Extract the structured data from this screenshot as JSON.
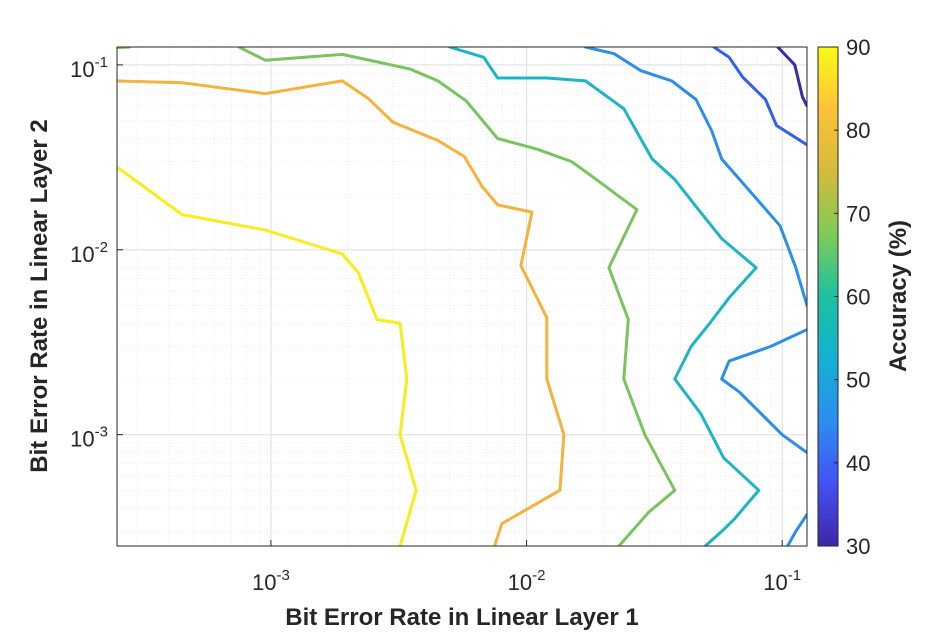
{
  "chart_data": {
    "type": "contour",
    "xlabel": "Bit Error Rate in Linear Layer 1",
    "ylabel": "Bit Error Rate in Linear Layer 2",
    "xscale": "log",
    "yscale": "log",
    "xlim": [
      0.00025,
      0.125
    ],
    "ylim": [
      0.00025,
      0.125
    ],
    "grid": true,
    "minor_grid": true,
    "x_ticks": [
      {
        "value": 0.001,
        "base": "10",
        "exp": "-3"
      },
      {
        "value": 0.01,
        "base": "10",
        "exp": "-2"
      },
      {
        "value": 0.1,
        "base": "10",
        "exp": "-1"
      }
    ],
    "y_ticks": [
      {
        "value": 0.1,
        "base": "10",
        "exp": "-1"
      },
      {
        "value": 0.01,
        "base": "10",
        "exp": "-2"
      },
      {
        "value": 0.001,
        "base": "10",
        "exp": "-3"
      }
    ],
    "colorbar": {
      "label": "Accuracy (%)",
      "min": 30,
      "max": 90,
      "ticks": [
        "90",
        "80",
        "70",
        "60",
        "50",
        "40",
        "30"
      ],
      "colormap": [
        "#3e26a8",
        "#4451f4",
        "#2d8df0",
        "#14b1d3",
        "#1cc1a0",
        "#80cb58",
        "#d5bb3a",
        "#fcc238",
        "#f9fb15"
      ]
    },
    "levels": [
      {
        "value": 90,
        "color": "#f4ee1c",
        "segments": [
          [
            [
              0.00025,
              0.028
            ],
            [
              0.00045,
              0.0155
            ],
            [
              0.00095,
              0.0128
            ],
            [
              0.0019,
              0.0095
            ],
            [
              0.0022,
              0.0075
            ],
            [
              0.0026,
              0.0042
            ],
            [
              0.0032,
              0.004
            ],
            [
              0.0034,
              0.002
            ],
            [
              0.0032,
              0.001
            ],
            [
              0.0037,
              0.0005
            ],
            [
              0.0032,
              0.00025
            ]
          ]
        ]
      },
      {
        "value": 80,
        "color": "#f5b23f",
        "segments": [
          [
            [
              0.00025,
              0.082
            ],
            [
              0.00045,
              0.08
            ],
            [
              0.00095,
              0.07
            ],
            [
              0.0019,
              0.082
            ],
            [
              0.0024,
              0.066
            ],
            [
              0.003,
              0.049
            ],
            [
              0.0045,
              0.039
            ],
            [
              0.0057,
              0.032
            ],
            [
              0.0067,
              0.022
            ],
            [
              0.0077,
              0.0175
            ],
            [
              0.0105,
              0.016
            ],
            [
              0.0095,
              0.0082
            ],
            [
              0.012,
              0.0043
            ],
            [
              0.012,
              0.002
            ],
            [
              0.014,
              0.001
            ],
            [
              0.0135,
              0.0005
            ],
            [
              0.008,
              0.00033
            ],
            [
              0.0075,
              0.00025
            ]
          ]
        ]
      },
      {
        "value": 70,
        "color": "#7ac460",
        "segments": [
          [
            [
              0.00025,
              0.124
            ],
            [
              0.00028,
              0.125
            ]
          ],
          [
            [
              0.00075,
              0.125
            ],
            [
              0.00095,
              0.106
            ],
            [
              0.0019,
              0.114
            ],
            [
              0.0035,
              0.095
            ],
            [
              0.0045,
              0.082
            ],
            [
              0.0058,
              0.064
            ],
            [
              0.0077,
              0.04
            ],
            [
              0.011,
              0.035
            ],
            [
              0.015,
              0.03
            ],
            [
              0.018,
              0.025
            ],
            [
              0.027,
              0.0165
            ],
            [
              0.021,
              0.008
            ],
            [
              0.025,
              0.0042
            ],
            [
              0.024,
              0.002
            ],
            [
              0.029,
              0.001
            ],
            [
              0.038,
              0.0005
            ],
            [
              0.03,
              0.00038
            ],
            [
              0.023,
              0.00025
            ]
          ]
        ]
      },
      {
        "value": 60,
        "color": "#1db5c4",
        "segments": [
          [
            [
              0.005,
              0.125
            ],
            [
              0.0068,
              0.11
            ],
            [
              0.0077,
              0.085
            ],
            [
              0.012,
              0.085
            ],
            [
              0.017,
              0.082
            ],
            [
              0.024,
              0.058
            ],
            [
              0.031,
              0.031
            ],
            [
              0.038,
              0.024
            ],
            [
              0.047,
              0.0165
            ],
            [
              0.058,
              0.0115
            ],
            [
              0.079,
              0.008
            ],
            [
              0.062,
              0.0055
            ],
            [
              0.052,
              0.004
            ],
            [
              0.044,
              0.003
            ],
            [
              0.038,
              0.002
            ],
            [
              0.048,
              0.0013
            ],
            [
              0.059,
              0.00075
            ],
            [
              0.081,
              0.0005
            ],
            [
              0.065,
              0.00035
            ],
            [
              0.058,
              0.0003
            ],
            [
              0.05,
              0.00025
            ]
          ]
        ]
      },
      {
        "value": 50,
        "color": "#2e8ee6",
        "segments": [
          [
            [
              0.017,
              0.125
            ],
            [
              0.022,
              0.115
            ],
            [
              0.028,
              0.093
            ],
            [
              0.037,
              0.082
            ],
            [
              0.046,
              0.065
            ],
            [
              0.053,
              0.044
            ],
            [
              0.058,
              0.031
            ],
            [
              0.072,
              0.022
            ],
            [
              0.098,
              0.0135
            ],
            [
              0.113,
              0.008
            ],
            [
              0.125,
              0.005
            ]
          ],
          [
            [
              0.125,
              0.0037
            ],
            [
              0.09,
              0.003
            ],
            [
              0.062,
              0.0025
            ],
            [
              0.058,
              0.002
            ],
            [
              0.068,
              0.0017
            ],
            [
              0.1,
              0.001
            ],
            [
              0.125,
              0.0008
            ]
          ],
          [
            [
              0.125,
              0.00037
            ],
            [
              0.113,
              0.0003
            ],
            [
              0.105,
              0.00025
            ]
          ]
        ]
      },
      {
        "value": 40,
        "color": "#345fe8",
        "segments": [
          [
            [
              0.054,
              0.125
            ],
            [
              0.062,
              0.11
            ],
            [
              0.07,
              0.086
            ],
            [
              0.086,
              0.065
            ],
            [
              0.095,
              0.047
            ],
            [
              0.125,
              0.037
            ]
          ]
        ]
      },
      {
        "value": 30,
        "color": "#3c2aa7",
        "segments": [
          [
            [
              0.096,
              0.125
            ],
            [
              0.112,
              0.1
            ],
            [
              0.12,
              0.067
            ],
            [
              0.125,
              0.06
            ]
          ]
        ]
      }
    ]
  }
}
